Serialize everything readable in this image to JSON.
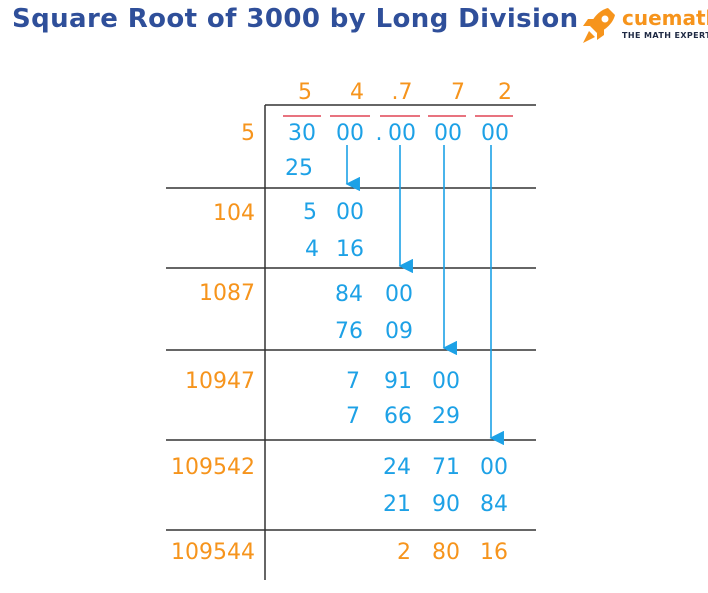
{
  "title": "Square Root of 3000 by Long Division",
  "logo": {
    "name": "cuemath",
    "tagline": "THE MATH EXPERT",
    "icon": "rocket-icon"
  },
  "colors": {
    "title": "#2f4f9a",
    "quotient": "#f6941c",
    "divisor": "#f6941c",
    "work": "#1da1e6",
    "remainder": "#f6941c",
    "overbar": "#e8737f",
    "line": "#333333"
  },
  "quotient": {
    "d1": "5",
    "d2": "4",
    "d3": ".7",
    "d4": "7",
    "d5": "2"
  },
  "dividend": {
    "p1": "30",
    "p2": "00",
    "dot": ".",
    "p3": "00",
    "p4": "00",
    "p5": "00"
  },
  "steps": [
    {
      "divisor": "5",
      "top": [],
      "bottom": [
        "25"
      ]
    },
    {
      "divisor": "104",
      "top": [
        "5",
        "00"
      ],
      "bottom": [
        "4",
        "16"
      ]
    },
    {
      "divisor": "1087",
      "top": [
        "84",
        "00"
      ],
      "bottom": [
        "76",
        "09"
      ]
    },
    {
      "divisor": "10947",
      "top": [
        "7",
        "91",
        "00"
      ],
      "bottom": [
        "7",
        "66",
        "29"
      ]
    },
    {
      "divisor": "109542",
      "top": [
        "24",
        "71",
        "00"
      ],
      "bottom": [
        "21",
        "90",
        "84"
      ]
    },
    {
      "divisor": "109544",
      "top": [],
      "bottom": []
    }
  ],
  "remainder": [
    "2",
    "80",
    "16"
  ]
}
